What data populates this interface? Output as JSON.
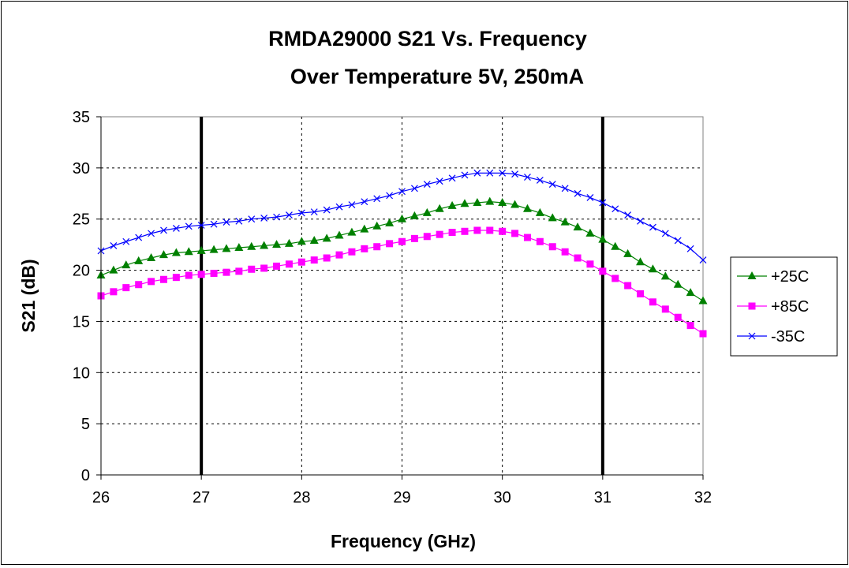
{
  "chart_data": {
    "type": "line",
    "title_lines": [
      "RMDA29000 S21 Vs. Frequency",
      "Over Temperature 5V, 250mA"
    ],
    "xlabel": "Frequency (GHz)",
    "ylabel": "S21 (dB)",
    "xlim": [
      26,
      32
    ],
    "ylim": [
      0,
      35
    ],
    "xticks": [
      "26",
      "27",
      "28",
      "29",
      "30",
      "31",
      "32"
    ],
    "yticks": [
      "0",
      "5",
      "10",
      "15",
      "20",
      "25",
      "30",
      "35"
    ],
    "grid": true,
    "legend_position": "right",
    "band_markers_ghz": [
      27,
      31
    ],
    "x": [
      26.0,
      26.125,
      26.25,
      26.375,
      26.5,
      26.625,
      26.75,
      26.875,
      27.0,
      27.125,
      27.25,
      27.375,
      27.5,
      27.625,
      27.75,
      27.875,
      28.0,
      28.125,
      28.25,
      28.375,
      28.5,
      28.625,
      28.75,
      28.875,
      29.0,
      29.125,
      29.25,
      29.375,
      29.5,
      29.625,
      29.75,
      29.875,
      30.0,
      30.125,
      30.25,
      30.375,
      30.5,
      30.625,
      30.75,
      30.875,
      31.0,
      31.125,
      31.25,
      31.375,
      31.5,
      31.625,
      31.75,
      31.875,
      32.0
    ],
    "series": [
      {
        "name": "+25C",
        "color": "#008000",
        "marker": "triangle",
        "values": [
          19.5,
          20.0,
          20.5,
          20.9,
          21.2,
          21.5,
          21.7,
          21.8,
          21.9,
          22.0,
          22.1,
          22.2,
          22.3,
          22.4,
          22.5,
          22.6,
          22.8,
          22.9,
          23.1,
          23.4,
          23.7,
          24.0,
          24.3,
          24.6,
          25.0,
          25.3,
          25.6,
          26.0,
          26.3,
          26.5,
          26.6,
          26.7,
          26.6,
          26.4,
          26.0,
          25.6,
          25.1,
          24.7,
          24.2,
          23.6,
          23.0,
          22.3,
          21.6,
          20.8,
          20.1,
          19.4,
          18.6,
          17.8,
          17.0
        ]
      },
      {
        "name": "+85C",
        "color": "#ff00ff",
        "marker": "square",
        "values": [
          17.5,
          17.9,
          18.3,
          18.6,
          18.9,
          19.1,
          19.3,
          19.5,
          19.6,
          19.7,
          19.8,
          19.9,
          20.1,
          20.2,
          20.4,
          20.6,
          20.8,
          21.0,
          21.2,
          21.5,
          21.8,
          22.1,
          22.3,
          22.6,
          22.8,
          23.1,
          23.3,
          23.5,
          23.7,
          23.8,
          23.9,
          23.9,
          23.8,
          23.6,
          23.2,
          22.8,
          22.3,
          21.8,
          21.2,
          20.6,
          19.9,
          19.2,
          18.5,
          17.7,
          16.9,
          16.2,
          15.4,
          14.6,
          13.8
        ]
      },
      {
        "name": "-35C",
        "color": "#0000ff",
        "marker": "x",
        "values": [
          21.9,
          22.4,
          22.8,
          23.2,
          23.6,
          23.9,
          24.1,
          24.3,
          24.4,
          24.5,
          24.7,
          24.8,
          25.0,
          25.1,
          25.2,
          25.4,
          25.6,
          25.7,
          25.9,
          26.2,
          26.4,
          26.7,
          27.0,
          27.3,
          27.7,
          28.0,
          28.4,
          28.7,
          29.0,
          29.3,
          29.5,
          29.5,
          29.5,
          29.4,
          29.1,
          28.8,
          28.4,
          28.0,
          27.5,
          27.1,
          26.6,
          26.0,
          25.4,
          24.8,
          24.2,
          23.6,
          22.9,
          22.1,
          21.0
        ]
      }
    ]
  }
}
